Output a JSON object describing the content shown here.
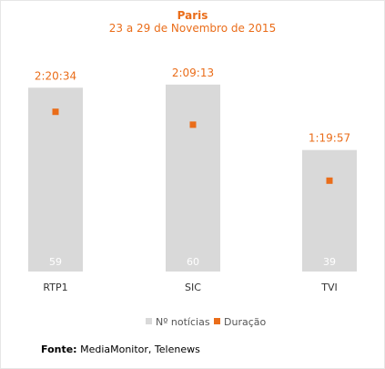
{
  "chart_data": {
    "type": "bar",
    "title": "Paris",
    "subtitle": "23 a 29 de Novembro de 2015",
    "categories": [
      "RTP1",
      "SIC",
      "TVI"
    ],
    "series": [
      {
        "name": "Nº notícias",
        "values": [
          59,
          60,
          39
        ],
        "color": "#d9d9d9",
        "kind": "bar",
        "value_labels": [
          "59",
          "60",
          "39"
        ]
      },
      {
        "name": "Duração",
        "values_seconds": [
          8434,
          7753,
          4797
        ],
        "value_labels": [
          "2:20:34",
          "2:09:13",
          "1:19:57"
        ],
        "color": "#ea6d1a",
        "kind": "point"
      }
    ],
    "ylim_bars": [
      0,
      62
    ],
    "ylim_duration_seconds": [
      0,
      10200
    ],
    "legend_position": "bottom",
    "grid": false
  },
  "source": {
    "label": "Fonte:",
    "text": " MediaMonitor, Telenews"
  }
}
